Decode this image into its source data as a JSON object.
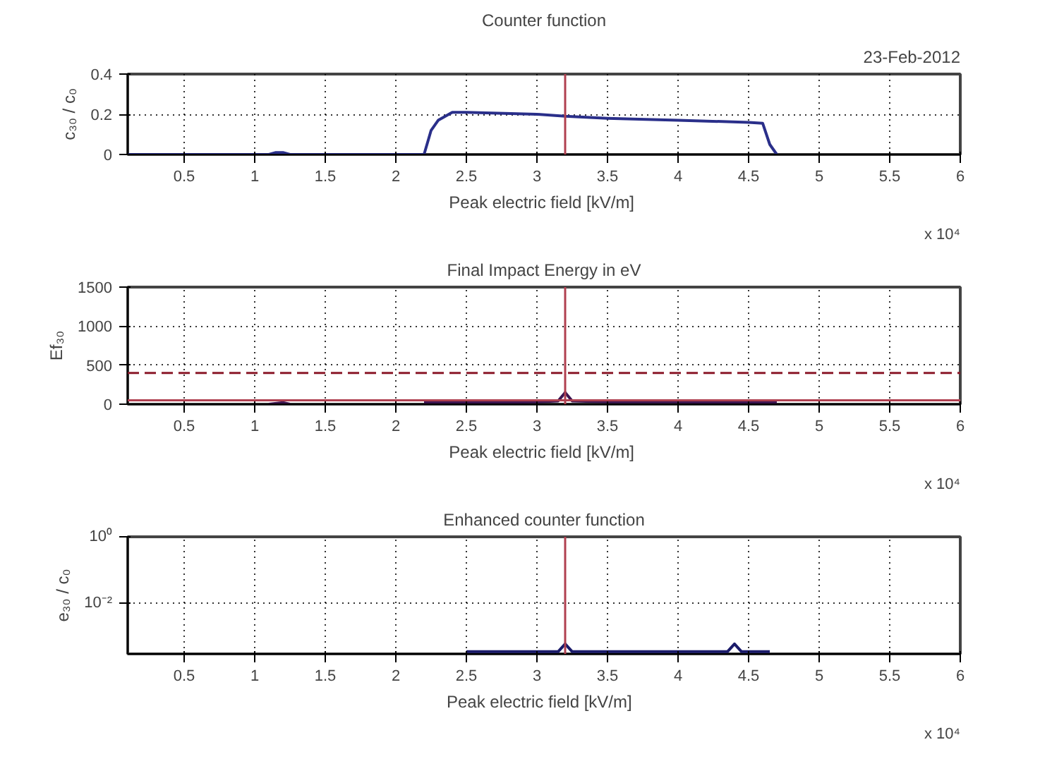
{
  "chart_data": [
    {
      "type": "line",
      "title": "Counter function",
      "xlabel": "Peak electric field  [kV/m]",
      "ylabel": "c₃₀ / c₀",
      "annotations": [
        "23-Feb-2012",
        "x 10⁴"
      ],
      "xlim": [
        0.1,
        6
      ],
      "xticks": [
        0.5,
        1,
        1.5,
        2,
        2.5,
        3,
        3.5,
        4,
        4.5,
        5,
        5.5,
        6
      ],
      "ylim": [
        0,
        0.4
      ],
      "yticks": [
        0,
        0.2,
        0.4
      ],
      "grid": true,
      "x": [
        0.1,
        1.1,
        1.15,
        1.2,
        1.25,
        2.2,
        2.25,
        2.3,
        2.4,
        2.5,
        3.0,
        3.2,
        3.5,
        4.0,
        4.5,
        4.6,
        4.65,
        4.7
      ],
      "series": [
        {
          "color": "#2a2f8a",
          "values": [
            0,
            0,
            0.01,
            0.01,
            0,
            0,
            0.12,
            0.17,
            0.21,
            0.21,
            0.2,
            0.19,
            0.18,
            0.17,
            0.16,
            0.155,
            0.05,
            0
          ]
        }
      ],
      "ref_lines": [
        {
          "axis": "x",
          "value": 3.2,
          "color": "#b04050",
          "line_style": "solid"
        }
      ]
    },
    {
      "type": "line",
      "title": "Final Impact Energy in eV",
      "xlabel": "Peak electric field  [kV/m]",
      "ylabel": "Ef₃₀",
      "annotations": [
        "x 10⁴"
      ],
      "xlim": [
        0.1,
        6
      ],
      "xticks": [
        0.5,
        1,
        1.5,
        2,
        2.5,
        3,
        3.5,
        4,
        4.5,
        5,
        5.5,
        6
      ],
      "ylim": [
        0,
        1500
      ],
      "yticks": [
        0,
        500,
        1000,
        1500
      ],
      "grid": true,
      "x": [
        1.1,
        1.2,
        1.25,
        1.3,
        2.2,
        2.5,
        3.0,
        3.15,
        3.2,
        3.25,
        3.5,
        4.0,
        4.5,
        4.7
      ],
      "series": [
        {
          "color": "#3c1450",
          "values": [
            0,
            20,
            0,
            null,
            20,
            20,
            30,
            40,
            150,
            40,
            30,
            30,
            20,
            20
          ]
        }
      ],
      "ref_lines": [
        {
          "axis": "x",
          "value": 3.2,
          "color": "#b04050",
          "line_style": "solid"
        },
        {
          "axis": "y",
          "value": 400,
          "color": "#8b1a2a",
          "line_style": "dashed"
        },
        {
          "axis": "y",
          "value": 50,
          "color": "#b04050",
          "line_style": "solid"
        }
      ]
    },
    {
      "type": "line",
      "title": "Enhanced counter function",
      "xlabel": "Peak electric field   [kV/m]",
      "ylabel": "e₃₀ / c₀",
      "annotations": [
        "x 10⁴"
      ],
      "log": true,
      "xlim": [
        0.1,
        6
      ],
      "xticks": [
        0.5,
        1,
        1.5,
        2,
        2.5,
        3,
        3.5,
        4,
        4.5,
        5,
        5.5,
        6
      ],
      "ylim": [
        0.0003,
        1
      ],
      "yticks": [
        {
          "value": 1,
          "label": "10⁰"
        },
        {
          "value": 0.01,
          "label": "10⁻²"
        }
      ],
      "grid": true,
      "x": [
        2.5,
        3.0,
        3.15,
        3.2,
        3.25,
        3.5,
        4.0,
        4.35,
        4.4,
        4.45,
        4.65
      ],
      "series": [
        {
          "color": "#1a1a6a",
          "values": [
            0.00035,
            0.00035,
            0.00035,
            0.0006,
            0.00035,
            0.00035,
            0.00035,
            0.00035,
            0.0006,
            0.00035,
            0.00035
          ]
        }
      ],
      "ref_lines": [
        {
          "axis": "x",
          "value": 3.2,
          "color": "#b04050",
          "line_style": "solid"
        }
      ]
    }
  ]
}
